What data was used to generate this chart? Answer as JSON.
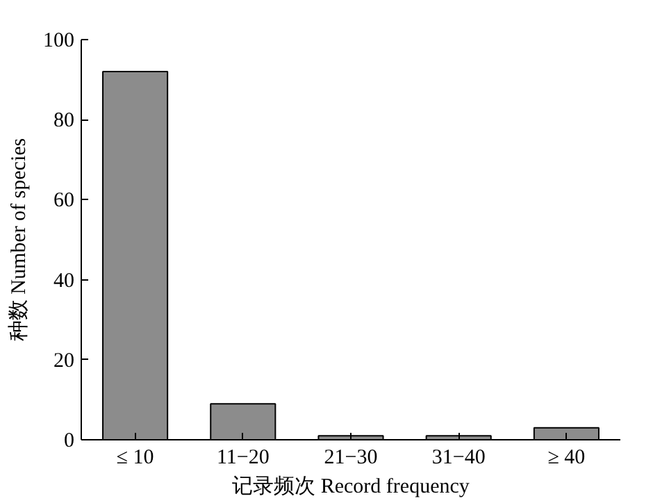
{
  "chart_data": {
    "type": "bar",
    "xlabel": "记录频次 Record frequency",
    "ylabel": "种数 Number of species",
    "categories": [
      "≤ 10",
      "11−20",
      "21−30",
      "31−40",
      "≥ 40"
    ],
    "values": [
      92,
      9,
      1,
      1,
      3
    ],
    "color": "#8c8c8c",
    "ylim": [
      0,
      100
    ],
    "yticks": [
      0,
      20,
      40,
      60,
      80,
      100
    ],
    "grid": false
  }
}
